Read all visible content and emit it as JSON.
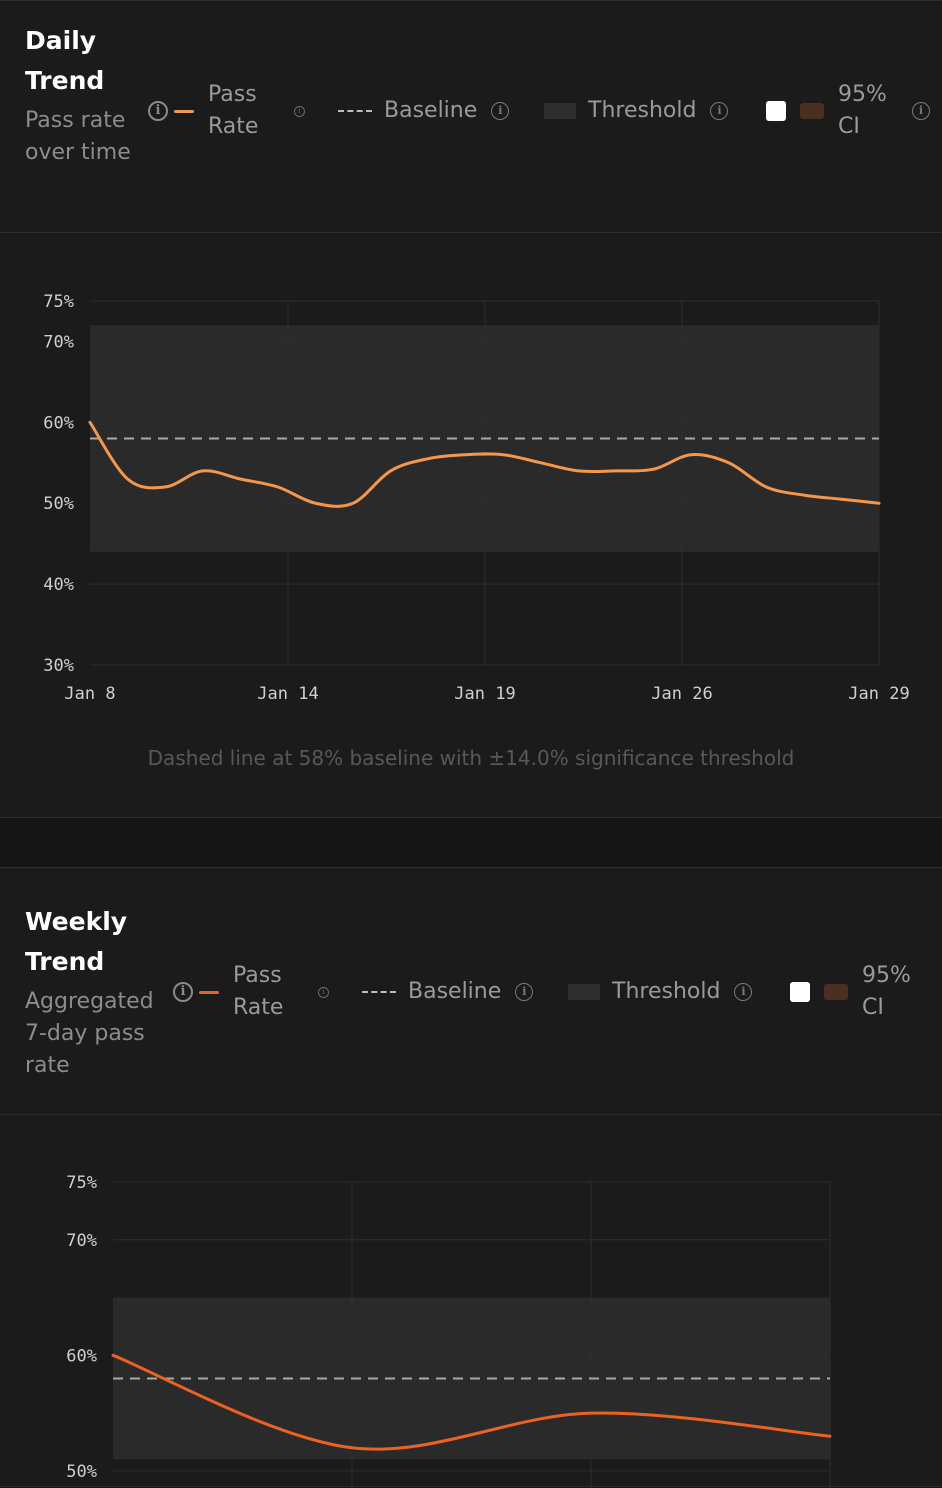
{
  "colors": {
    "daily_line": "#f5974b",
    "weekly_line": "#ec6220",
    "baseline": "#a8a8a8",
    "threshold_band": "#2a2a2a",
    "ci_white": "#ffffff",
    "ci_brown": "#4a2e1e"
  },
  "legend_icons": {
    "info": "info-circle-icon"
  },
  "chart_data": [
    {
      "type": "line",
      "title": "Daily Trend",
      "subtitle": "Pass rate over time",
      "legend": [
        "Pass Rate",
        "Baseline",
        "Threshold",
        "95% CI"
      ],
      "x_ticks": [
        "Jan 8",
        "Jan 14",
        "Jan 19",
        "Jan 26",
        "Jan 29"
      ],
      "y_ticks": [
        "75%",
        "70%",
        "60%",
        "50%",
        "40%",
        "30%"
      ],
      "ylim": [
        30,
        75
      ],
      "baseline": 58,
      "threshold": 14.0,
      "series": [
        {
          "name": "Pass Rate",
          "x": [
            0,
            1,
            2,
            3,
            4,
            5,
            6,
            7,
            8,
            9,
            10,
            11,
            12,
            13,
            14,
            15,
            16,
            17,
            18,
            19,
            20,
            21
          ],
          "values": [
            60,
            53,
            52,
            54,
            53,
            52,
            50,
            50,
            54,
            55.5,
            56,
            56,
            55,
            54,
            54,
            54.2,
            56,
            55,
            52,
            51,
            50.5,
            50
          ]
        }
      ],
      "caption": "Dashed line at 58% baseline with ±14.0% significance threshold"
    },
    {
      "type": "line",
      "title": "Weekly Trend",
      "subtitle": "Aggregated 7-day pass rate",
      "legend": [
        "Pass Rate",
        "Baseline",
        "Threshold",
        "95% CI"
      ],
      "y_ticks": [
        "75%",
        "70%",
        "60%",
        "50%"
      ],
      "ylim": [
        30,
        75
      ],
      "baseline": 58,
      "threshold": 7.0,
      "series": [
        {
          "name": "Pass Rate",
          "x": [
            0,
            1,
            2,
            3
          ],
          "values": [
            60,
            52,
            55,
            53
          ]
        }
      ]
    }
  ]
}
